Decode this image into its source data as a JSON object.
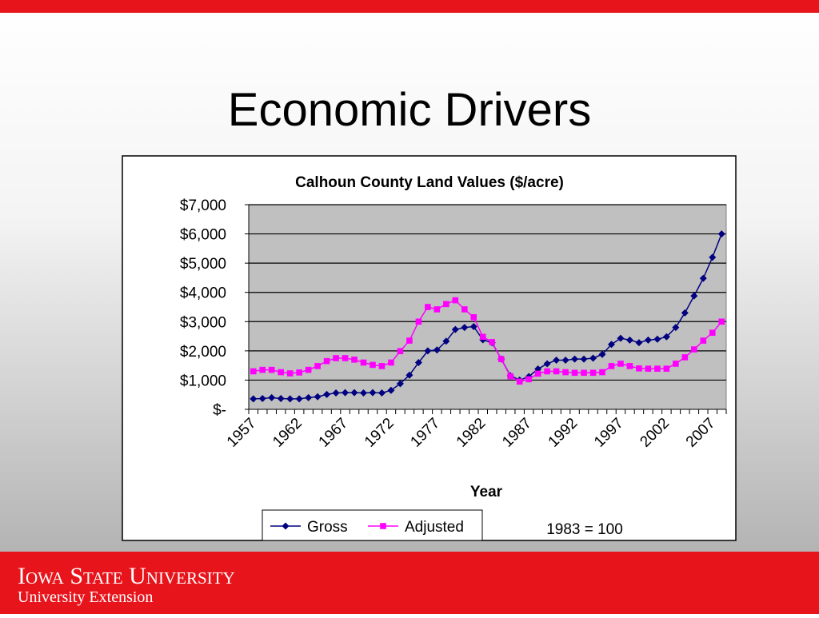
{
  "slide": {
    "title": "Economic Drivers",
    "footer": {
      "name": "Iowa State University",
      "unit": "University Extension"
    }
  },
  "chart_data": {
    "type": "line",
    "title": "Calhoun County Land Values ($/acre)",
    "x_label": "Year",
    "annotation": "1983 = 100",
    "categories": [
      1957,
      null,
      null,
      null,
      null,
      1962,
      null,
      null,
      null,
      null,
      1967,
      null,
      null,
      null,
      null,
      1972,
      null,
      null,
      null,
      null,
      1977,
      null,
      null,
      null,
      null,
      1982,
      null,
      null,
      null,
      null,
      1987,
      null,
      null,
      null,
      null,
      1992,
      null,
      null,
      null,
      null,
      1997,
      null,
      null,
      null,
      null,
      2002,
      null,
      null,
      null,
      null,
      2007,
      null
    ],
    "series": [
      {
        "name": "Gross",
        "color": "#000080",
        "marker": "diamond",
        "values": [
          360,
          370,
          400,
          370,
          360,
          360,
          400,
          430,
          510,
          560,
          570,
          570,
          560,
          570,
          560,
          650,
          880,
          1170,
          1600,
          2000,
          2030,
          2330,
          2730,
          2800,
          2830,
          2380,
          2280,
          1720,
          1150,
          1000,
          1120,
          1380,
          1560,
          1680,
          1680,
          1720,
          1720,
          1750,
          1880,
          2220,
          2430,
          2370,
          2280,
          2370,
          2400,
          2480,
          2800,
          3300,
          3880,
          4480,
          5200,
          6000
        ]
      },
      {
        "name": "Adjusted",
        "color": "#ff00ff",
        "marker": "square",
        "values": [
          1300,
          1350,
          1350,
          1270,
          1230,
          1260,
          1350,
          1480,
          1650,
          1750,
          1750,
          1700,
          1600,
          1520,
          1480,
          1600,
          1990,
          2350,
          3000,
          3500,
          3420,
          3600,
          3730,
          3420,
          3150,
          2480,
          2300,
          1720,
          1130,
          950,
          1030,
          1220,
          1300,
          1300,
          1270,
          1250,
          1250,
          1250,
          1270,
          1480,
          1560,
          1480,
          1400,
          1390,
          1390,
          1390,
          1560,
          1780,
          2050,
          2350,
          2620,
          3000
        ]
      }
    ],
    "ylim": [
      0,
      7000
    ],
    "yticks": [
      {
        "value": 0,
        "label": "$-"
      },
      {
        "value": 1000,
        "label": "$1,000"
      },
      {
        "value": 2000,
        "label": "$2,000"
      },
      {
        "value": 3000,
        "label": "$3,000"
      },
      {
        "value": 4000,
        "label": "$4,000"
      },
      {
        "value": 5000,
        "label": "$5,000"
      },
      {
        "value": 6000,
        "label": "$6,000"
      },
      {
        "value": 7000,
        "label": "$7,000"
      }
    ],
    "grid": true,
    "legend": "bottom"
  }
}
